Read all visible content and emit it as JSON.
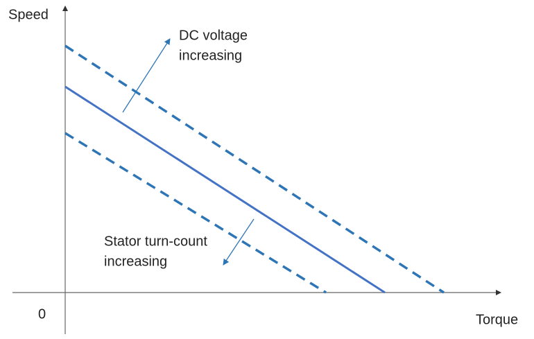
{
  "axes": {
    "y_label": "Speed",
    "x_label": "Torque",
    "origin_label": "0"
  },
  "annotations": [
    {
      "lines": [
        "DC voltage",
        "increasing"
      ]
    },
    {
      "lines": [
        "Stator turn-count",
        "increasing"
      ]
    }
  ]
}
